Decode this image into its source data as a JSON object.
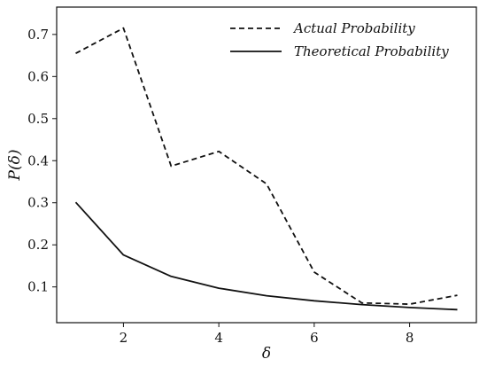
{
  "chart_data": {
    "type": "line",
    "title": "",
    "xlabel": "δ",
    "ylabel": "P(δ)",
    "x": [
      1,
      2,
      3,
      4,
      5,
      6,
      7,
      8,
      9
    ],
    "xlim": [
      0.6,
      9.4
    ],
    "ylim": [
      0.015,
      0.765
    ],
    "xticks": [
      2,
      4,
      6,
      8
    ],
    "yticks": [
      0.1,
      0.2,
      0.3,
      0.4,
      0.5,
      0.6,
      0.7
    ],
    "grid": false,
    "legend_position": "top-right",
    "series": [
      {
        "name": "Actual Probability",
        "style": "dashed",
        "color": "#111111",
        "values": [
          0.655,
          0.715,
          0.387,
          0.422,
          0.345,
          0.135,
          0.062,
          0.059,
          0.08
        ]
      },
      {
        "name": "Theoretical Probability",
        "style": "solid",
        "color": "#111111",
        "values": [
          0.301,
          0.176,
          0.125,
          0.097,
          0.079,
          0.067,
          0.058,
          0.051,
          0.046
        ]
      }
    ]
  }
}
